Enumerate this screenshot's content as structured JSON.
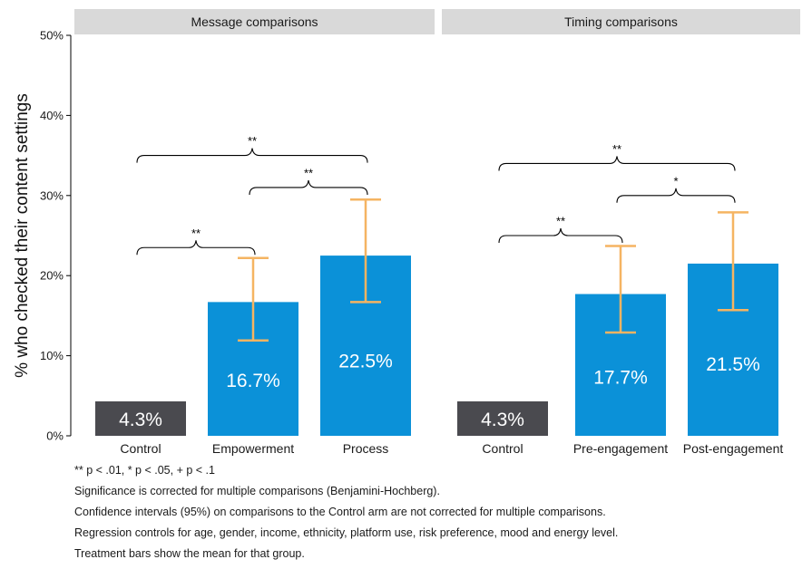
{
  "chart_data": {
    "type": "bar",
    "ylabel": "% who checked their content settings",
    "ylim": [
      0,
      50
    ],
    "yticks": [
      "0%",
      "10%",
      "20%",
      "30%",
      "40%",
      "50%"
    ],
    "ytick_values": [
      0,
      10,
      20,
      30,
      40,
      50
    ],
    "grid": false,
    "colors": {
      "control": "#4a4a4f",
      "treatment": "#0b91d8",
      "errorbar": "#f5b462",
      "strip": "#d9d9d9",
      "bar_label": "#ffffff"
    },
    "panels": [
      {
        "title": "Message comparisons",
        "categories": [
          "Control",
          "Empowerment",
          "Process"
        ],
        "values": [
          4.3,
          16.7,
          22.5
        ],
        "labels": [
          "4.3%",
          "16.7%",
          "22.5%"
        ],
        "ci_low": [
          null,
          11.9,
          16.7
        ],
        "ci_high": [
          null,
          22.2,
          29.5
        ],
        "brackets": [
          {
            "from": 0,
            "to": 1,
            "y": 23.5,
            "label": "**"
          },
          {
            "from": 1,
            "to": 2,
            "y": 31.0,
            "label": "**"
          },
          {
            "from": 0,
            "to": 2,
            "y": 35.0,
            "label": "**"
          }
        ]
      },
      {
        "title": "Timing comparisons",
        "categories": [
          "Control",
          "Pre-engagement",
          "Post-engagement"
        ],
        "values": [
          4.3,
          17.7,
          21.5
        ],
        "labels": [
          "4.3%",
          "17.7%",
          "21.5%"
        ],
        "ci_low": [
          null,
          12.9,
          15.7
        ],
        "ci_high": [
          null,
          23.7,
          27.9
        ],
        "brackets": [
          {
            "from": 0,
            "to": 1,
            "y": 25.0,
            "label": "**"
          },
          {
            "from": 1,
            "to": 2,
            "y": 30.0,
            "label": "*"
          },
          {
            "from": 0,
            "to": 2,
            "y": 34.0,
            "label": "**"
          }
        ]
      }
    ]
  },
  "notes": [
    "** p < .01, * p < .05, + p < .1",
    "Significance is corrected for multiple comparisons (Benjamini-Hochberg).",
    "Confidence intervals (95%) on comparisons to the Control arm are not corrected for multiple comparisons.",
    "Regression controls for age, gender, income, ethnicity, platform use, risk preference, mood and energy level.",
    "Treatment bars show the mean for that group."
  ]
}
